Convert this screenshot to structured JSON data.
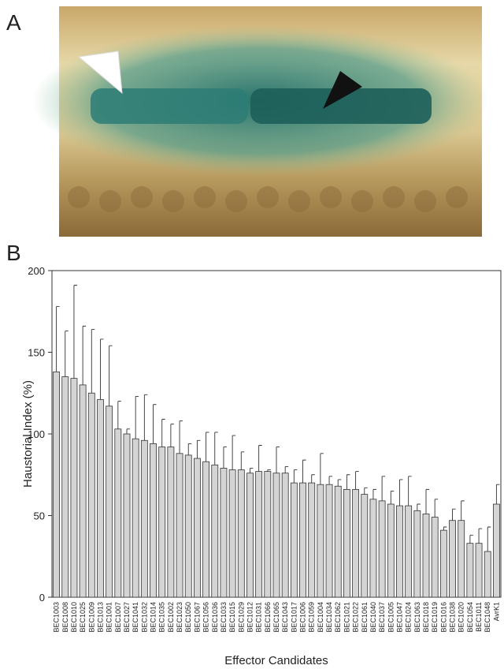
{
  "panel_labels": {
    "a": "A",
    "b": "B"
  },
  "chart_data": {
    "type": "bar",
    "x_label": "Effector Candidates",
    "y_label": "Haustorial Index (%)",
    "categories": [
      "BEC1003",
      "BEC1008",
      "BEC1010",
      "BEC1025",
      "BEC1009",
      "BEC1013",
      "BEC1001",
      "BEC1007",
      "BEC1027",
      "BEC1041",
      "BEC1032",
      "BEC1014",
      "BEC1035",
      "BEC1002",
      "BEC1023",
      "BEC1050",
      "BEC1067",
      "BEC1056",
      "BEC1036",
      "BEC1033",
      "BEC1015",
      "BEC1029",
      "BEC1012",
      "BEC1031",
      "BEC1066",
      "BEC1065",
      "BEC1043",
      "BEC1017",
      "BEC1006",
      "BEC1059",
      "BEC1004",
      "BEC1034",
      "BEC1062",
      "BEC1021",
      "BEC1022",
      "BEC1061",
      "BEC1040",
      "BEC1037",
      "BEC1005",
      "BEC1047",
      "BEC1024",
      "BEC1063",
      "BEC1018",
      "BEC1019",
      "BEC1016",
      "BEC1038",
      "BEC1020",
      "BEC1054",
      "BEC1011",
      "BEC1048",
      "AvrK1"
    ],
    "series": [
      {
        "color": "#d4d4d4",
        "values": [
          138,
          135,
          134,
          130,
          125,
          121,
          117,
          103,
          100,
          97,
          96,
          94,
          92,
          92,
          88,
          87,
          85,
          83,
          81,
          79,
          78,
          78,
          76,
          77,
          77,
          76,
          76,
          70,
          70,
          70,
          69,
          69,
          68,
          66,
          66,
          63,
          60,
          59,
          57,
          56,
          56,
          53,
          51,
          49,
          41,
          47,
          47,
          33,
          33,
          28,
          57
        ],
        "errors": [
          40,
          28,
          57,
          36,
          39,
          37,
          37,
          17,
          3,
          26,
          28,
          24,
          17,
          14,
          20,
          7,
          11,
          18,
          20,
          13,
          21,
          11,
          3,
          16,
          1,
          16,
          4,
          8,
          14,
          5,
          19,
          5,
          4,
          9,
          11,
          4,
          6,
          15,
          8,
          16,
          18,
          4,
          15,
          11,
          2,
          7,
          12,
          5,
          9,
          15,
          12
        ]
      }
    ],
    "ylim": [
      0,
      200
    ],
    "yticks": [
      0,
      50,
      100,
      150,
      200
    ]
  }
}
